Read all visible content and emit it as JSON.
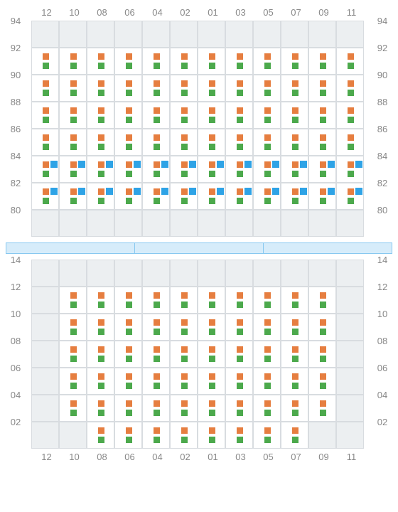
{
  "colors": {
    "orange": "#e67e40",
    "green": "#4ca94c",
    "blue": "#2ea3e6",
    "empty_bg": "#eceff1",
    "cell_bg": "#ffffff",
    "border": "#d8dce0",
    "label": "#888888",
    "divider_fill": "#d6ecfa",
    "divider_border": "#87c8f0"
  },
  "columns": [
    "12",
    "10",
    "08",
    "06",
    "04",
    "02",
    "01",
    "03",
    "05",
    "07",
    "09",
    "11"
  ],
  "topSection": {
    "rowLabels": [
      "94",
      "92",
      "90",
      "88",
      "86",
      "84",
      "82",
      "80"
    ],
    "rows": [
      [
        {
          "t": "empty"
        },
        {
          "t": "empty"
        },
        {
          "t": "empty"
        },
        {
          "t": "empty"
        },
        {
          "t": "empty"
        },
        {
          "t": "empty"
        },
        {
          "t": "empty"
        },
        {
          "t": "empty"
        },
        {
          "t": "empty"
        },
        {
          "t": "empty"
        },
        {
          "t": "empty"
        },
        {
          "t": "empty"
        }
      ],
      [
        {
          "t": "og"
        },
        {
          "t": "og"
        },
        {
          "t": "og"
        },
        {
          "t": "og"
        },
        {
          "t": "og"
        },
        {
          "t": "og"
        },
        {
          "t": "og"
        },
        {
          "t": "og"
        },
        {
          "t": "og"
        },
        {
          "t": "og"
        },
        {
          "t": "og"
        },
        {
          "t": "og"
        }
      ],
      [
        {
          "t": "og"
        },
        {
          "t": "og"
        },
        {
          "t": "og"
        },
        {
          "t": "og"
        },
        {
          "t": "og"
        },
        {
          "t": "og"
        },
        {
          "t": "og"
        },
        {
          "t": "og"
        },
        {
          "t": "og"
        },
        {
          "t": "og"
        },
        {
          "t": "og"
        },
        {
          "t": "og"
        }
      ],
      [
        {
          "t": "og"
        },
        {
          "t": "og"
        },
        {
          "t": "og"
        },
        {
          "t": "og"
        },
        {
          "t": "og"
        },
        {
          "t": "og"
        },
        {
          "t": "og"
        },
        {
          "t": "og"
        },
        {
          "t": "og"
        },
        {
          "t": "og"
        },
        {
          "t": "og"
        },
        {
          "t": "og"
        }
      ],
      [
        {
          "t": "og"
        },
        {
          "t": "og"
        },
        {
          "t": "og"
        },
        {
          "t": "og"
        },
        {
          "t": "og"
        },
        {
          "t": "og"
        },
        {
          "t": "og"
        },
        {
          "t": "og"
        },
        {
          "t": "og"
        },
        {
          "t": "og"
        },
        {
          "t": "og"
        },
        {
          "t": "og"
        }
      ],
      [
        {
          "t": "ogb"
        },
        {
          "t": "ogb"
        },
        {
          "t": "ogb"
        },
        {
          "t": "ogb"
        },
        {
          "t": "ogb"
        },
        {
          "t": "ogb"
        },
        {
          "t": "ogb"
        },
        {
          "t": "ogb"
        },
        {
          "t": "ogb"
        },
        {
          "t": "ogb"
        },
        {
          "t": "ogb"
        },
        {
          "t": "ogb"
        }
      ],
      [
        {
          "t": "ogb"
        },
        {
          "t": "ogb"
        },
        {
          "t": "ogb"
        },
        {
          "t": "ogb"
        },
        {
          "t": "ogb"
        },
        {
          "t": "ogb"
        },
        {
          "t": "ogb"
        },
        {
          "t": "ogb"
        },
        {
          "t": "ogb"
        },
        {
          "t": "ogb"
        },
        {
          "t": "ogb"
        },
        {
          "t": "ogb"
        }
      ],
      [
        {
          "t": "empty"
        },
        {
          "t": "empty"
        },
        {
          "t": "empty"
        },
        {
          "t": "empty"
        },
        {
          "t": "empty"
        },
        {
          "t": "empty"
        },
        {
          "t": "empty"
        },
        {
          "t": "empty"
        },
        {
          "t": "empty"
        },
        {
          "t": "empty"
        },
        {
          "t": "empty"
        },
        {
          "t": "empty"
        }
      ]
    ]
  },
  "divider_segments": 3,
  "bottomSection": {
    "rowLabels": [
      "14",
      "12",
      "10",
      "08",
      "06",
      "04",
      "02"
    ],
    "rows": [
      [
        {
          "t": "empty"
        },
        {
          "t": "empty"
        },
        {
          "t": "empty"
        },
        {
          "t": "empty"
        },
        {
          "t": "empty"
        },
        {
          "t": "empty"
        },
        {
          "t": "empty"
        },
        {
          "t": "empty"
        },
        {
          "t": "empty"
        },
        {
          "t": "empty"
        },
        {
          "t": "empty"
        },
        {
          "t": "empty"
        }
      ],
      [
        {
          "t": "empty"
        },
        {
          "t": "og"
        },
        {
          "t": "og"
        },
        {
          "t": "og"
        },
        {
          "t": "og"
        },
        {
          "t": "og"
        },
        {
          "t": "og"
        },
        {
          "t": "og"
        },
        {
          "t": "og"
        },
        {
          "t": "og"
        },
        {
          "t": "og"
        },
        {
          "t": "empty"
        }
      ],
      [
        {
          "t": "empty"
        },
        {
          "t": "og"
        },
        {
          "t": "og"
        },
        {
          "t": "og"
        },
        {
          "t": "og"
        },
        {
          "t": "og"
        },
        {
          "t": "og"
        },
        {
          "t": "og"
        },
        {
          "t": "og"
        },
        {
          "t": "og"
        },
        {
          "t": "og"
        },
        {
          "t": "empty"
        }
      ],
      [
        {
          "t": "empty"
        },
        {
          "t": "og"
        },
        {
          "t": "og"
        },
        {
          "t": "og"
        },
        {
          "t": "og"
        },
        {
          "t": "og"
        },
        {
          "t": "og"
        },
        {
          "t": "og"
        },
        {
          "t": "og"
        },
        {
          "t": "og"
        },
        {
          "t": "og"
        },
        {
          "t": "empty"
        }
      ],
      [
        {
          "t": "empty"
        },
        {
          "t": "og"
        },
        {
          "t": "og"
        },
        {
          "t": "og"
        },
        {
          "t": "og"
        },
        {
          "t": "og"
        },
        {
          "t": "og"
        },
        {
          "t": "og"
        },
        {
          "t": "og"
        },
        {
          "t": "og"
        },
        {
          "t": "og"
        },
        {
          "t": "empty"
        }
      ],
      [
        {
          "t": "empty"
        },
        {
          "t": "og"
        },
        {
          "t": "og"
        },
        {
          "t": "og"
        },
        {
          "t": "og"
        },
        {
          "t": "og"
        },
        {
          "t": "og"
        },
        {
          "t": "og"
        },
        {
          "t": "og"
        },
        {
          "t": "og"
        },
        {
          "t": "og"
        },
        {
          "t": "empty"
        }
      ],
      [
        {
          "t": "empty"
        },
        {
          "t": "empty"
        },
        {
          "t": "og"
        },
        {
          "t": "og"
        },
        {
          "t": "og"
        },
        {
          "t": "og"
        },
        {
          "t": "og"
        },
        {
          "t": "og"
        },
        {
          "t": "og"
        },
        {
          "t": "og"
        },
        {
          "t": "empty"
        },
        {
          "t": "empty"
        }
      ]
    ]
  }
}
